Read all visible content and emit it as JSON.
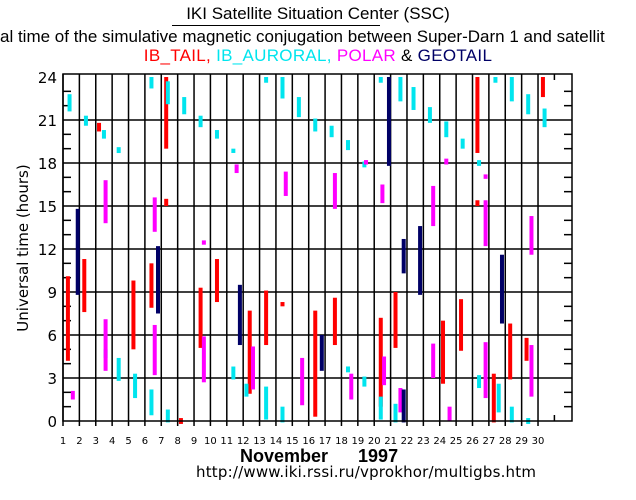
{
  "header": {
    "title": "IKI Satellite Situation Center (SSC)",
    "subtitle": "al time of the simulative magnetic conjugation between Super-Darn 1 and satellit"
  },
  "legend": {
    "items": [
      {
        "label": "IB_TAIL,",
        "color": "#ff0000"
      },
      {
        "label": " IB_AURORAL,",
        "color": "#00e5ee"
      },
      {
        "label": " POLAR",
        "color": "#ff00ff"
      },
      {
        "label": " & ",
        "color": "#000000"
      },
      {
        "label": "GEOTAIL",
        "color": "#000066"
      }
    ]
  },
  "footer": {
    "month_year": "November      1997",
    "url": "http://www.iki.rssi.ru/vprokhor/multigbs.htm"
  },
  "chart_data": {
    "type": "bar",
    "subtype": "interval-ranges",
    "title": "IKI Satellite Situation Center (SSC)",
    "xlabel": "November 1997",
    "ylabel": "Universal time (hours)",
    "x_ticks": [
      "1",
      "2",
      "3",
      "4",
      "5",
      "6",
      "7",
      "8",
      "9",
      "10",
      "11",
      "12",
      "13",
      "14",
      "15",
      "16",
      "17",
      "18",
      "19",
      "20",
      "21",
      "22",
      "23",
      "24",
      "25",
      "26",
      "27",
      "28",
      "29",
      "30"
    ],
    "y_ticks": [
      0,
      3,
      6,
      9,
      12,
      15,
      18,
      21,
      24
    ],
    "xlim": [
      1,
      32
    ],
    "ylim": [
      0,
      24
    ],
    "grid": true,
    "series": [
      {
        "name": "IB_TAIL",
        "color": "#ff0000",
        "intervals": [
          {
            "day": 1,
            "pos": 0.3,
            "start": 4.2,
            "end": 10.1
          },
          {
            "day": 2,
            "pos": 0.3,
            "start": 7.6,
            "end": 11.3
          },
          {
            "day": 3,
            "pos": 0.2,
            "start": 20.2,
            "end": 20.8
          },
          {
            "day": 5,
            "pos": 0.3,
            "start": 5.0,
            "end": 9.8
          },
          {
            "day": 6,
            "pos": 0.4,
            "start": 7.9,
            "end": 11.0
          },
          {
            "day": 7,
            "pos": 0.3,
            "start": 19.0,
            "end": 24.0
          },
          {
            "day": 7,
            "pos": 0.3,
            "start": 15.0,
            "end": 15.5
          },
          {
            "day": 8,
            "pos": 0.2,
            "start": -0.1,
            "end": 0.1
          },
          {
            "day": 9,
            "pos": 0.4,
            "start": 5.1,
            "end": 9.3
          },
          {
            "day": 10,
            "pos": 0.4,
            "start": 8.3,
            "end": 11.3
          },
          {
            "day": 12,
            "pos": 0.4,
            "start": 1.9,
            "end": 7.7
          },
          {
            "day": 13,
            "pos": 0.4,
            "start": 5.3,
            "end": 9.1
          },
          {
            "day": 14,
            "pos": 0.4,
            "start": 8.3,
            "end": 8.0
          },
          {
            "day": 16,
            "pos": 0.4,
            "start": 0.3,
            "end": 7.7
          },
          {
            "day": 17,
            "pos": 0.6,
            "start": 5.3,
            "end": 8.6
          },
          {
            "day": 20,
            "pos": 0.4,
            "start": 1.0,
            "end": 7.2
          },
          {
            "day": 21,
            "pos": 0.3,
            "start": 5.1,
            "end": 9.0
          },
          {
            "day": 24,
            "pos": 0.2,
            "start": 2.6,
            "end": 7.0
          },
          {
            "day": 25,
            "pos": 0.3,
            "start": 4.9,
            "end": 8.5
          },
          {
            "day": 26,
            "pos": 0.3,
            "start": 18.7,
            "end": 24.0
          },
          {
            "day": 26,
            "pos": 0.3,
            "start": 15.0,
            "end": 15.4
          },
          {
            "day": 27,
            "pos": 0.3,
            "start": -0.1,
            "end": 3.3
          },
          {
            "day": 28,
            "pos": 0.3,
            "start": 2.9,
            "end": 6.8
          },
          {
            "day": 29,
            "pos": 0.3,
            "start": 4.2,
            "end": 5.8
          },
          {
            "day": 30,
            "pos": 0.3,
            "start": 22.6,
            "end": 24.0
          }
        ]
      },
      {
        "name": "IB_AURORAL",
        "color": "#00e5ee",
        "intervals": [
          {
            "day": 1,
            "pos": 0.4,
            "start": 21.6,
            "end": 22.8
          },
          {
            "day": 2,
            "pos": 0.4,
            "start": 20.6,
            "end": 21.3
          },
          {
            "day": 3,
            "pos": 0.5,
            "start": 19.7,
            "end": 20.3
          },
          {
            "day": 4,
            "pos": 0.4,
            "start": 18.8,
            "end": 19.0
          },
          {
            "day": 4,
            "pos": 0.4,
            "start": 2.8,
            "end": 4.4
          },
          {
            "day": 3,
            "pos": 0.6,
            "start": 4.4,
            "end": 5.0
          },
          {
            "day": 5,
            "pos": 0.4,
            "start": 1.6,
            "end": 3.3
          },
          {
            "day": 6,
            "pos": 0.4,
            "start": 0.4,
            "end": 2.2
          },
          {
            "day": 6,
            "pos": 0.4,
            "start": 23.2,
            "end": 24.0
          },
          {
            "day": 7,
            "pos": 0.4,
            "start": 22.1,
            "end": 23.7
          },
          {
            "day": 7,
            "pos": 0.4,
            "start": -0.1,
            "end": 0.8
          },
          {
            "day": 8,
            "pos": 0.4,
            "start": 21.4,
            "end": 22.6
          },
          {
            "day": 9,
            "pos": 0.4,
            "start": 20.5,
            "end": 21.3
          },
          {
            "day": 10,
            "pos": 0.4,
            "start": 19.7,
            "end": 20.3
          },
          {
            "day": 11,
            "pos": 0.4,
            "start": 18.7,
            "end": 19.0
          },
          {
            "day": 11,
            "pos": 0.4,
            "start": 2.9,
            "end": 3.8
          },
          {
            "day": 12,
            "pos": 0.2,
            "start": 1.7,
            "end": 2.6
          },
          {
            "day": 13,
            "pos": 0.4,
            "start": 0.1,
            "end": 2.4
          },
          {
            "day": 13,
            "pos": 0.4,
            "start": 23.6,
            "end": 24.0
          },
          {
            "day": 14,
            "pos": 0.4,
            "start": 22.5,
            "end": 24.0
          },
          {
            "day": 14,
            "pos": 0.4,
            "start": -0.1,
            "end": 1.0
          },
          {
            "day": 15,
            "pos": 0.4,
            "start": 21.2,
            "end": 22.6
          },
          {
            "day": 16,
            "pos": 0.4,
            "start": 20.2,
            "end": 21.1
          },
          {
            "day": 17,
            "pos": 0.4,
            "start": 19.8,
            "end": 20.6
          },
          {
            "day": 18,
            "pos": 0.4,
            "start": 18.9,
            "end": 19.6
          },
          {
            "day": 18,
            "pos": 0.4,
            "start": 3.5,
            "end": 3.7
          },
          {
            "day": 19,
            "pos": 0.4,
            "start": 17.8,
            "end": 18.0
          },
          {
            "day": 19,
            "pos": 0.4,
            "start": 2.4,
            "end": 3.1
          },
          {
            "day": 20,
            "pos": 0.4,
            "start": 0.1,
            "end": 1.7
          },
          {
            "day": 20,
            "pos": 0.4,
            "start": 23.6,
            "end": 24.0
          },
          {
            "day": 21,
            "pos": 0.3,
            "start": -0.1,
            "end": 1.2
          },
          {
            "day": 21,
            "pos": 0.6,
            "start": 22.3,
            "end": 24.0
          },
          {
            "day": 22,
            "pos": 0.4,
            "start": 21.7,
            "end": 23.3
          },
          {
            "day": 23,
            "pos": 0.4,
            "start": 20.8,
            "end": 21.9
          },
          {
            "day": 24,
            "pos": 0.4,
            "start": 19.8,
            "end": 20.9
          },
          {
            "day": 25,
            "pos": 0.4,
            "start": 19.0,
            "end": 19.7
          },
          {
            "day": 26,
            "pos": 0.4,
            "start": 17.8,
            "end": 18.2
          },
          {
            "day": 26,
            "pos": 0.4,
            "start": 2.3,
            "end": 3.2
          },
          {
            "day": 27,
            "pos": 0.6,
            "start": 0.6,
            "end": 2.6
          },
          {
            "day": 27,
            "pos": 0.4,
            "start": 23.6,
            "end": 24.0
          },
          {
            "day": 28,
            "pos": 0.4,
            "start": 22.3,
            "end": 24.0
          },
          {
            "day": 28,
            "pos": 0.4,
            "start": -0.1,
            "end": 1.0
          },
          {
            "day": 29,
            "pos": 0.4,
            "start": 21.4,
            "end": 22.8
          },
          {
            "day": 29,
            "pos": 0.4,
            "start": -0.1,
            "end": 0.1
          },
          {
            "day": 30,
            "pos": 0.4,
            "start": 20.5,
            "end": 21.8
          }
        ]
      },
      {
        "name": "POLAR",
        "color": "#ff00ff",
        "intervals": [
          {
            "day": 1,
            "pos": 0.6,
            "start": 1.5,
            "end": 2.1
          },
          {
            "day": 3,
            "pos": 0.6,
            "start": 13.8,
            "end": 16.8
          },
          {
            "day": 3,
            "pos": 0.6,
            "start": 3.5,
            "end": 7.1
          },
          {
            "day": 6,
            "pos": 0.6,
            "start": 13.2,
            "end": 15.6
          },
          {
            "day": 6,
            "pos": 0.6,
            "start": 3.2,
            "end": 6.7
          },
          {
            "day": 9,
            "pos": 0.6,
            "start": 2.7,
            "end": 5.9
          },
          {
            "day": 9,
            "pos": 0.6,
            "start": 12.3,
            "end": 12.6
          },
          {
            "day": 11,
            "pos": 0.6,
            "start": 17.3,
            "end": 17.9
          },
          {
            "day": 12,
            "pos": 0.6,
            "start": 2.2,
            "end": 5.2
          },
          {
            "day": 14,
            "pos": 0.6,
            "start": 15.7,
            "end": 17.4
          },
          {
            "day": 15,
            "pos": 0.6,
            "start": 1.1,
            "end": 4.4
          },
          {
            "day": 17,
            "pos": 0.6,
            "start": 14.8,
            "end": 17.3
          },
          {
            "day": 18,
            "pos": 0.6,
            "start": 1.5,
            "end": 3.3
          },
          {
            "day": 19,
            "pos": 0.5,
            "start": 18.0,
            "end": 18.1
          },
          {
            "day": 20,
            "pos": 0.6,
            "start": 2.5,
            "end": 4.5
          },
          {
            "day": 20,
            "pos": 0.5,
            "start": 15.2,
            "end": 16.5
          },
          {
            "day": 21,
            "pos": 0.6,
            "start": 0.6,
            "end": 2.3
          },
          {
            "day": 23,
            "pos": 0.6,
            "start": 3.0,
            "end": 5.4
          },
          {
            "day": 23,
            "pos": 0.6,
            "start": 13.6,
            "end": 16.4
          },
          {
            "day": 24,
            "pos": 0.4,
            "start": 18.0,
            "end": 18.2
          },
          {
            "day": 24,
            "pos": 0.6,
            "start": 0.0,
            "end": 1.0
          },
          {
            "day": 26,
            "pos": 0.8,
            "start": 12.2,
            "end": 15.4
          },
          {
            "day": 26,
            "pos": 0.8,
            "start": 1.6,
            "end": 5.5
          },
          {
            "day": 26,
            "pos": 0.8,
            "start": 17.0,
            "end": 17.1
          },
          {
            "day": 29,
            "pos": 0.6,
            "start": 1.7,
            "end": 5.3
          },
          {
            "day": 29,
            "pos": 0.6,
            "start": 11.6,
            "end": 14.3
          }
        ]
      },
      {
        "name": "GEOTAIL",
        "color": "#000066",
        "intervals": [
          {
            "day": 1,
            "pos": 0.9,
            "start": 8.8,
            "end": 14.8
          },
          {
            "day": 6,
            "pos": 0.8,
            "start": 7.5,
            "end": 12.2
          },
          {
            "day": 11,
            "pos": 0.8,
            "start": 5.3,
            "end": 9.5
          },
          {
            "day": 16,
            "pos": 0.8,
            "start": 3.5,
            "end": 6.0
          },
          {
            "day": 20,
            "pos": 0.9,
            "start": 17.8,
            "end": 24.0
          },
          {
            "day": 21,
            "pos": 0.8,
            "start": 10.3,
            "end": 12.7
          },
          {
            "day": 21,
            "pos": 0.8,
            "start": -0.1,
            "end": 2.2
          },
          {
            "day": 22,
            "pos": 0.8,
            "start": 8.8,
            "end": 13.6
          },
          {
            "day": 27,
            "pos": 0.8,
            "start": 6.8,
            "end": 11.6
          }
        ]
      }
    ]
  }
}
